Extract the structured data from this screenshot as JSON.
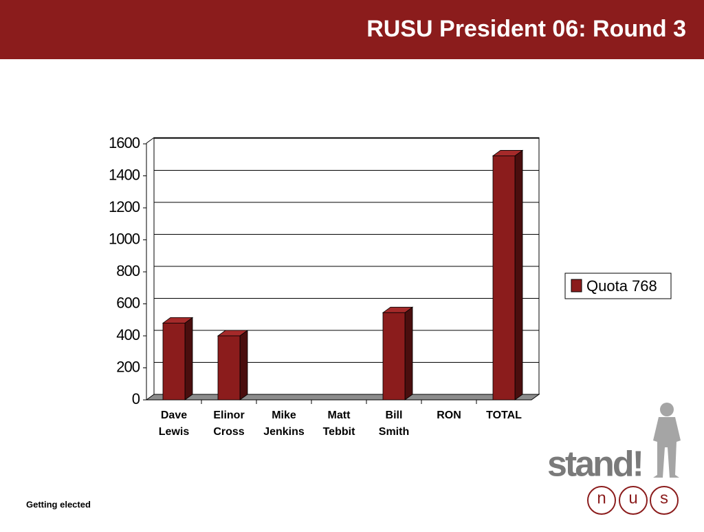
{
  "chart_data": {
    "type": "bar",
    "title": "RUSU President 06: Round 3",
    "categories": [
      "Dave Lewis",
      "Elinor Cross",
      "Mike Jenkins",
      "Matt Tebbit",
      "Bill Smith",
      "RON",
      "TOTAL"
    ],
    "series": [
      {
        "name": "Quota 768",
        "color": "#8b1c1c",
        "values": [
          480,
          400,
          0,
          0,
          545,
          0,
          1525
        ]
      }
    ],
    "ylim": [
      0,
      1600
    ],
    "yticks": [
      0,
      200,
      400,
      600,
      800,
      1000,
      1200,
      1400,
      1600
    ],
    "grid": true,
    "legend": "right"
  },
  "footer": "Getting elected",
  "logo": {
    "word": "stand!",
    "letters": [
      "n",
      "u",
      "s"
    ]
  }
}
